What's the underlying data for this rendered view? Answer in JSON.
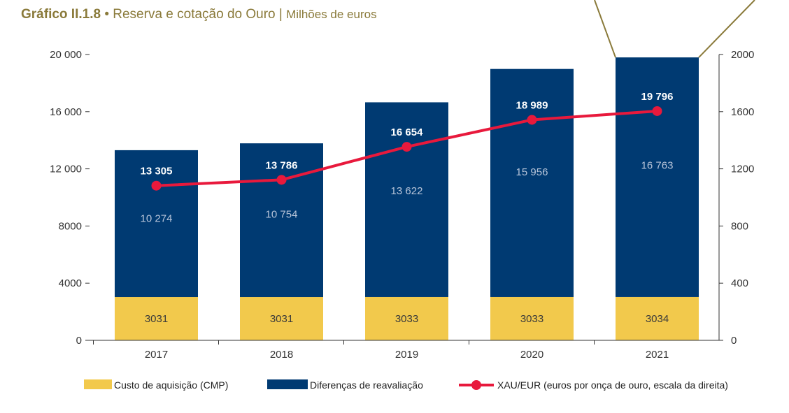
{
  "title": {
    "label": "Gráfico II.1.8",
    "bullet": "•",
    "main": "Reserva e cotação do Ouro",
    "divider": "|",
    "unit": "Milhões de euros"
  },
  "colors": {
    "acquisition": "#f2c94c",
    "revaluation": "#003a72",
    "line": "#e8193c",
    "axis": "#333333",
    "callout": "#8a7a3a"
  },
  "chart_data": {
    "type": "bar",
    "stacked": true,
    "categories": [
      "2017",
      "2018",
      "2019",
      "2020",
      "2021"
    ],
    "series": [
      {
        "name": "Custo de aquisição (CMP)",
        "values": [
          3031,
          3031,
          3033,
          3033,
          3034
        ],
        "labels": [
          "3031",
          "3031",
          "3033",
          "3033",
          "3034"
        ]
      },
      {
        "name": "Diferenças de reavaliação",
        "values": [
          10274,
          10754,
          13622,
          15956,
          16763
        ],
        "labels": [
          "10 274",
          "10 754",
          "13 622",
          "15 956",
          "16 763"
        ]
      }
    ],
    "totals": {
      "values": [
        13305,
        13786,
        16654,
        18989,
        19796
      ],
      "labels": [
        "13 305",
        "13 786",
        "16 654",
        "18 989",
        "19 796"
      ]
    },
    "line_series": {
      "name": "XAU/EUR (euros por onça de ouro, escala da direita)",
      "axis": "right",
      "values": [
        1082,
        1123,
        1354,
        1543,
        1604
      ]
    },
    "ylim_left": [
      0,
      20000
    ],
    "yticks_left": [
      0,
      4000,
      8000,
      12000,
      16000,
      20000
    ],
    "ytick_labels_left": [
      "0",
      "4000",
      "8000",
      "12 000",
      "16 000",
      "20 000"
    ],
    "ylim_right": [
      0,
      2000
    ],
    "yticks_right": [
      0,
      400,
      800,
      1200,
      1600,
      2000
    ],
    "ytick_labels_right": [
      "0",
      "400",
      "800",
      "1200",
      "1600",
      "2000"
    ],
    "legend": {
      "position": "bottom",
      "items": [
        "Custo de aquisição (CMP)",
        "Diferenças de reavaliação",
        "XAU/EUR (euros por onça de ouro, escala da direita)"
      ]
    }
  }
}
